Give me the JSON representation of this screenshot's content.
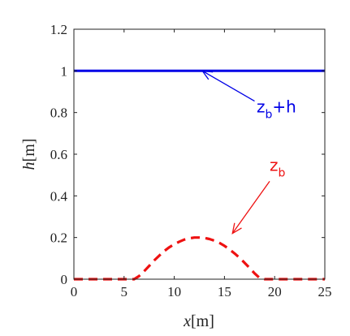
{
  "chart_data": {
    "type": "line",
    "xlabel": {
      "var": "x",
      "unit": "[m]"
    },
    "ylabel": {
      "var": "h",
      "unit": "[m]"
    },
    "xlim": [
      0,
      25
    ],
    "ylim": [
      0,
      1.2
    ],
    "xticks": [
      0,
      5,
      10,
      15,
      20,
      25
    ],
    "yticks": [
      0,
      0.2,
      0.4,
      0.6,
      0.8,
      1,
      1.2
    ],
    "xtick_labels": [
      "0",
      "5",
      "10",
      "15",
      "20",
      "25"
    ],
    "ytick_labels": [
      "0",
      "0.2",
      "0.4",
      "0.6",
      "0.8",
      "1",
      "1.2"
    ],
    "grid": false,
    "series": [
      {
        "name": "z_b+h",
        "style": "solid",
        "color": "#0000e6",
        "x": [
          0,
          25
        ],
        "y": [
          1.0,
          1.0
        ]
      },
      {
        "name": "z_b",
        "style": "dashed",
        "color": "#ee1111",
        "x": [
          0,
          6,
          6.5,
          7,
          7.5,
          8,
          8.5,
          9,
          9.5,
          10,
          10.5,
          11,
          11.5,
          12,
          12.5,
          13,
          13.5,
          14,
          14.5,
          15,
          15.5,
          16,
          16.5,
          17,
          17.5,
          18,
          18.5,
          19,
          25
        ],
        "y": [
          0,
          0,
          0.015,
          0.038,
          0.064,
          0.09,
          0.113,
          0.135,
          0.153,
          0.168,
          0.18,
          0.19,
          0.196,
          0.2,
          0.2,
          0.198,
          0.193,
          0.185,
          0.174,
          0.16,
          0.143,
          0.124,
          0.103,
          0.079,
          0.054,
          0.028,
          0.006,
          0,
          0
        ]
      }
    ],
    "annotations": [
      {
        "main": "z",
        "sub": "b",
        "tail": "+h",
        "color": "#0000e6",
        "arrow_to": [
          12.8,
          1.0
        ],
        "arrow_from": [
          18.0,
          0.855
        ],
        "text_at": [
          18.2,
          0.8
        ]
      },
      {
        "main": "z",
        "sub": "b",
        "tail": "",
        "color": "#ee1111",
        "arrow_to": [
          15.8,
          0.22
        ],
        "arrow_from": [
          19.5,
          0.47
        ],
        "text_at": [
          19.5,
          0.52
        ]
      }
    ]
  }
}
